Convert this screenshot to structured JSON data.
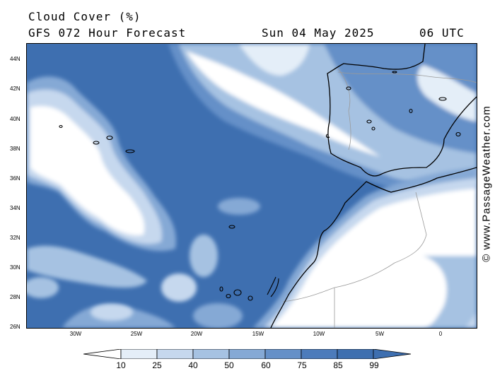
{
  "header": {
    "title": "Cloud Cover (%)",
    "subtitle": "GFS 072 Hour Forecast",
    "date": "Sun 04 May 2025",
    "time": "06 UTC"
  },
  "credit": "© www.PassageWeather.com",
  "axes": {
    "lat_labels": [
      "44N",
      "42N",
      "40N",
      "38N",
      "36N",
      "34N",
      "32N",
      "30N",
      "28N",
      "26N"
    ],
    "lon_labels": [
      "30W",
      "25W",
      "20W",
      "15W",
      "10W",
      "5W",
      "0"
    ]
  },
  "legend": {
    "levels": [
      "10",
      "25",
      "40",
      "50",
      "60",
      "75",
      "85",
      "99"
    ],
    "colors": [
      "#ffffff",
      "#e4eef8",
      "#c6d8ee",
      "#a6c2e2",
      "#85a9d5",
      "#6590c8",
      "#4c7bbb",
      "#3e6fb0"
    ]
  },
  "map": {
    "ocean_cloud_color": "#3e6fb0",
    "clear_color": "#ffffff",
    "coastline_color": "#000000",
    "border_color": "#9a9a9a"
  }
}
